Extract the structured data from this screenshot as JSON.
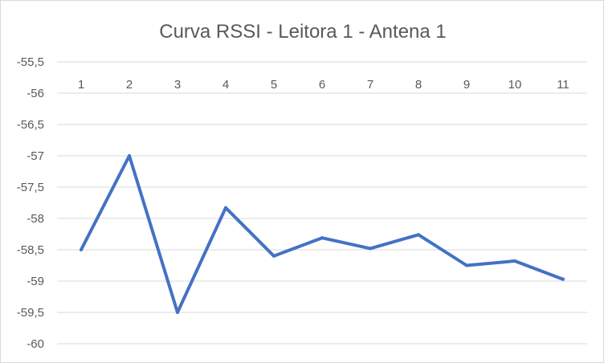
{
  "chart_data": {
    "type": "line",
    "title": "Curva RSSI - Leitora 1 - Antena 1",
    "xlabel": "",
    "ylabel": "",
    "categories": [
      "1",
      "2",
      "3",
      "4",
      "5",
      "6",
      "7",
      "8",
      "9",
      "10",
      "11"
    ],
    "series": [
      {
        "values": [
          -58.5,
          -57.0,
          -59.5,
          -57.83,
          -58.6,
          -58.31,
          -58.48,
          -58.26,
          -58.75,
          -58.68,
          -58.97
        ],
        "color": "#4472c4"
      }
    ],
    "y_ticks": [
      "-55,5",
      "-56",
      "-56,5",
      "-57",
      "-57,5",
      "-58",
      "-58,5",
      "-59",
      "-59,5",
      "-60"
    ],
    "ylim": [
      -60,
      -55.5
    ],
    "grid": true,
    "x_axis_position": "top",
    "legend": "none"
  }
}
